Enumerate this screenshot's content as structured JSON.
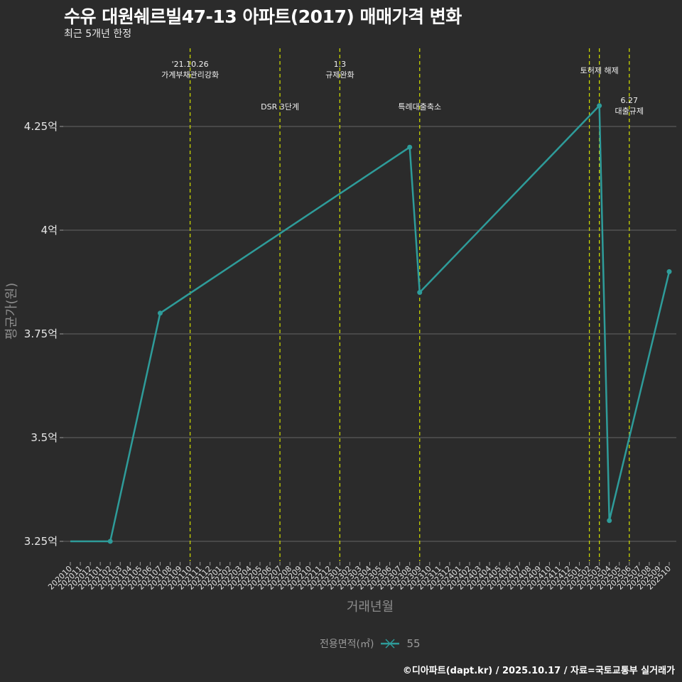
{
  "header": {
    "title": "수유 대원쉐르빌47-13 아파트(2017) 매매가격 변화",
    "subtitle": "최근 5개년 한정"
  },
  "legend": {
    "title": "전용면적(㎡)",
    "items": [
      {
        "label": "55",
        "color": "#2e9c9a"
      }
    ]
  },
  "footer": "©디아파트(dapt.kr) / 2025.10.17 / 자료=국토교통부 실거래가",
  "colors": {
    "background": "#2b2b2b",
    "line": "#2e9c9a",
    "gridline": "#5a5a5a",
    "event_line": "#c8d400"
  },
  "chart_data": {
    "type": "line",
    "title": "수유 대원쉐르빌47-13 아파트(2017) 매매가격 변화",
    "subtitle": "최근 5개년 한정",
    "xlabel": "거래년월",
    "ylabel": "평균가(원)",
    "ylim": [
      3.18,
      4.42
    ],
    "y_unit": "억",
    "y_ticks": [
      {
        "value": 3.25,
        "label": "3.25억"
      },
      {
        "value": 3.5,
        "label": "3.5억"
      },
      {
        "value": 3.75,
        "label": "3.75억"
      },
      {
        "value": 4.0,
        "label": "4억"
      },
      {
        "value": 4.25,
        "label": "4.25억"
      }
    ],
    "x_categories": [
      "202010",
      "202011",
      "202012",
      "202101",
      "202102",
      "202103",
      "202104",
      "202105",
      "202106",
      "202107",
      "202108",
      "202109",
      "202110",
      "202111",
      "202112",
      "202201",
      "202202",
      "202203",
      "202204",
      "202205",
      "202206",
      "202207",
      "202208",
      "202209",
      "202210",
      "202211",
      "202212",
      "202301",
      "202302",
      "202303",
      "202304",
      "202305",
      "202306",
      "202307",
      "202308",
      "202309",
      "202310",
      "202311",
      "202312",
      "202401",
      "202402",
      "202403",
      "202404",
      "202405",
      "202406",
      "202407",
      "202408",
      "202409",
      "202410",
      "202411",
      "202412",
      "202501",
      "202502",
      "202503",
      "202504",
      "202505",
      "202506",
      "202507",
      "202508",
      "202509",
      "202510"
    ],
    "grid": true,
    "legend_position": "bottom",
    "series": [
      {
        "name": "55",
        "points": [
          {
            "x": "202010",
            "y": 3.25
          },
          {
            "x": "202102",
            "y": 3.25
          },
          {
            "x": "202107",
            "y": 3.8
          },
          {
            "x": "202308",
            "y": 4.2
          },
          {
            "x": "202309",
            "y": 3.85
          },
          {
            "x": "202503",
            "y": 4.3
          },
          {
            "x": "202504",
            "y": 3.3
          },
          {
            "x": "202510",
            "y": 3.9
          }
        ]
      }
    ],
    "annotations": [
      {
        "x": "202110",
        "lines": [
          "'21.10.26",
          "가계부채관리강화"
        ],
        "row": "top"
      },
      {
        "x": "202207",
        "lines": [
          "DSR 3단계"
        ],
        "row": "bottom"
      },
      {
        "x": "202301",
        "lines": [
          "1.3",
          "규제완화"
        ],
        "row": "top"
      },
      {
        "x": "202309",
        "lines": [
          "특례대출축소"
        ],
        "row": "bottom"
      },
      {
        "x": "202502",
        "lines": [],
        "row": "none"
      },
      {
        "x": "202503",
        "lines": [
          "토허제 해제"
        ],
        "row": "top"
      },
      {
        "x": "202506",
        "lines": [
          "6.27",
          "대출규제"
        ],
        "row": "bottom"
      }
    ]
  }
}
